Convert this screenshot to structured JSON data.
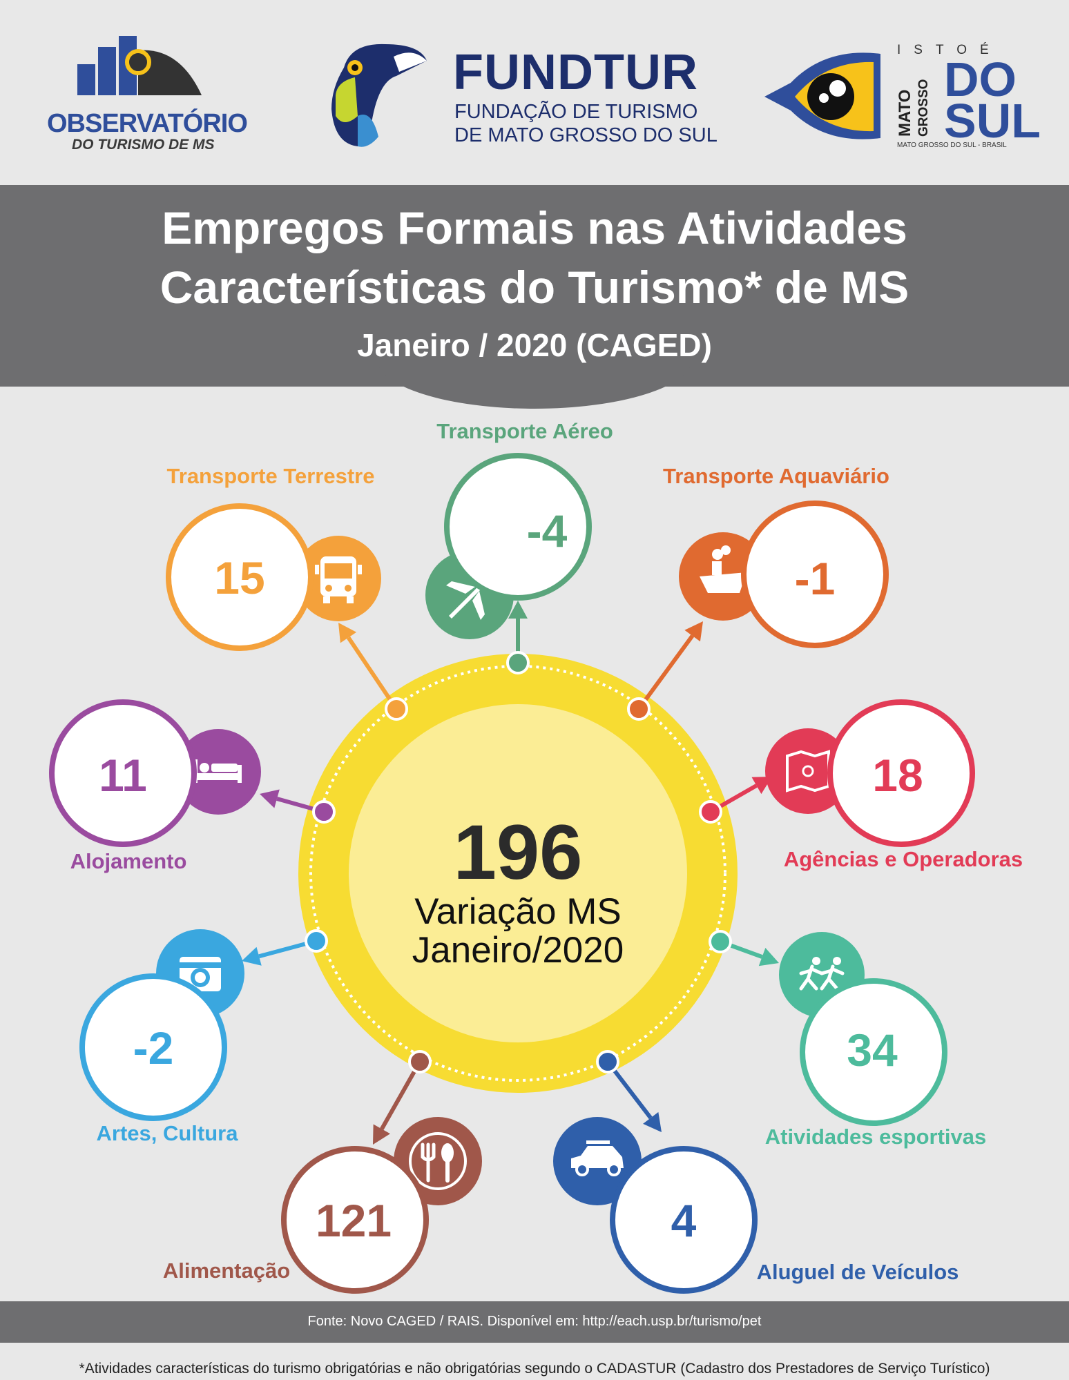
{
  "logos": {
    "observatorio": {
      "title": "OBSERVATÓRIO",
      "subtitle": "DO TURISMO DE MS"
    },
    "fundtur": {
      "name": "FUNDTUR",
      "line1": "FUNDAÇÃO DE TURISMO",
      "line2": "DE MATO GROSSO DO SUL"
    },
    "ms": {
      "istoe": "ISTOÉ",
      "mato": "MATO",
      "grosso": "GROSSO",
      "do": "DO",
      "sul": "SUL",
      "brasil": "MATO GROSSO DO SUL - BRASIL"
    }
  },
  "header": {
    "title_line1": "Empregos Formais nas Atividades",
    "title_line2": "Características do Turismo* de MS",
    "subtitle": "Janeiro / 2020 (CAGED)"
  },
  "chart_data": {
    "type": "radial-infographic",
    "total": {
      "value": "196",
      "label_line1": "Variação MS",
      "label_line2": "Janeiro/2020"
    },
    "categories": [
      {
        "name": "Transporte Aéreo",
        "value": -4,
        "display": "-4",
        "color": "#5aa57c",
        "icon": "airplane-icon"
      },
      {
        "name": "Transporte Aquaviário",
        "value": -1,
        "display": "-1",
        "color": "#e06a30",
        "icon": "ship-icon"
      },
      {
        "name": "Agências e Operadoras",
        "value": 18,
        "display": "18",
        "color": "#e23b56",
        "icon": "map-icon"
      },
      {
        "name": "Atividades esportivas",
        "value": 34,
        "display": "34",
        "color": "#4dbb9c",
        "icon": "runners-icon"
      },
      {
        "name": "Aluguel de Veículos",
        "value": 4,
        "display": "4",
        "color": "#2f5faa",
        "icon": "car-icon"
      },
      {
        "name": "Alimentação",
        "value": 121,
        "display": "121",
        "color": "#a0574a",
        "icon": "fork-spoon-icon"
      },
      {
        "name": "Artes, Cultura",
        "value": -2,
        "display": "-2",
        "color": "#3aa7df",
        "icon": "camera-icon"
      },
      {
        "name": "Alojamento",
        "value": 11,
        "display": "11",
        "color": "#9a4b9f",
        "icon": "bed-icon"
      },
      {
        "name": "Transporte Terrestre",
        "value": 15,
        "display": "15",
        "color": "#f4a13b",
        "icon": "bus-icon"
      }
    ],
    "center_color": "#f7dc32",
    "center_inner_color": "#fbed95"
  },
  "footer": {
    "source": "Fonte: Novo CAGED / RAIS. Disponível em: http://each.usp.br/turismo/pet",
    "footnote": "*Atividades características do turismo obrigatórias e não obrigatórias segundo o CADASTUR (Cadastro dos Prestadores de Serviço Turístico)"
  }
}
